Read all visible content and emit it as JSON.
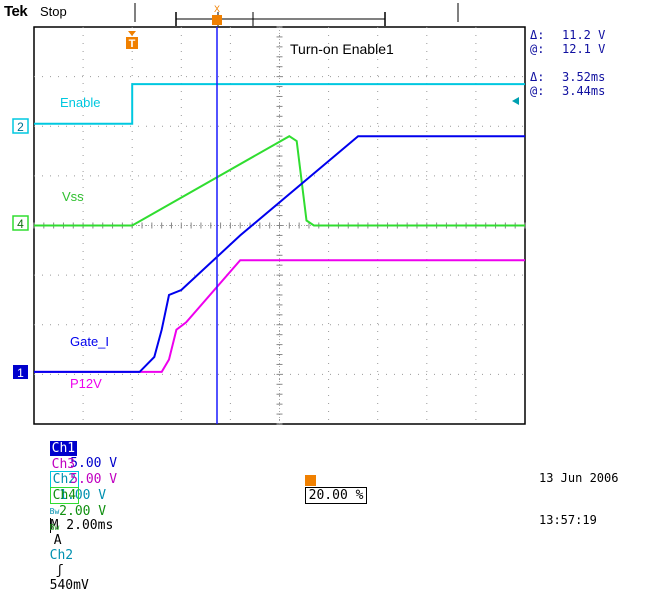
{
  "header": {
    "brand": "Tek",
    "state": "Stop"
  },
  "screen_title": "Turn-on Enable1",
  "trigger_marker": "T",
  "cursor_marker": "X",
  "measurements": [
    {
      "symbol": "Δ:",
      "value": "11.2 V"
    },
    {
      "symbol": "@:",
      "value": "12.1 V"
    },
    {
      "symbol": "Δ:",
      "value": "3.52ms"
    },
    {
      "symbol": "@:",
      "value": "3.44ms"
    }
  ],
  "channels": {
    "enable": {
      "label": "Enable",
      "marker": "2",
      "color": "#00c8e0"
    },
    "vss": {
      "label": "Vss",
      "marker": "4",
      "color": "#30dd30"
    },
    "gate": {
      "label": "Gate_I",
      "marker": "1",
      "color": "#0000ee"
    },
    "p12v": {
      "label": "P12V",
      "color": "#ee00ee"
    }
  },
  "status": {
    "ch1_name": "Ch1",
    "ch1_scale": "5.00 V",
    "ch2_name": "Ch2",
    "ch2_scale": "1.00 V",
    "bw": "Bw",
    "time": "M 2.00ms",
    "acq": "A",
    "trig_src": "Ch2",
    "trig_slope": "ʃ",
    "trig_level": "540mV",
    "ch3_name": "Ch3",
    "ch3_scale": "5.00 V",
    "ch4_name": "Ch4",
    "ch4_scale": "2.00 V",
    "bw2": "Bw",
    "trig_pos": "20.00 %",
    "date": "13 Jun 2006",
    "time_of_day": "13:57:19"
  },
  "chart_data": {
    "type": "line",
    "title": "Turn-on Enable1",
    "xlabel": "",
    "ylabel": "",
    "x_divisions": 10,
    "y_divisions": 8,
    "grid": true,
    "series": [
      {
        "name": "Enable",
        "values": [
          [
            0,
            6.05
          ],
          [
            2.0,
            6.05
          ],
          [
            2.0,
            6.85
          ],
          [
            10,
            6.85
          ]
        ]
      },
      {
        "name": "Vss",
        "values": [
          [
            0,
            4.0
          ],
          [
            2.0,
            4.0
          ],
          [
            5.2,
            5.8
          ],
          [
            5.35,
            5.7
          ],
          [
            5.55,
            4.1
          ],
          [
            5.7,
            4.0
          ],
          [
            10,
            4.0
          ]
        ]
      },
      {
        "name": "Gate_I",
        "values": [
          [
            0,
            1.05
          ],
          [
            2.15,
            1.05
          ],
          [
            2.45,
            1.35
          ],
          [
            2.6,
            1.9
          ],
          [
            2.75,
            2.6
          ],
          [
            3.0,
            2.7
          ],
          [
            4.2,
            3.8
          ],
          [
            6.6,
            5.8
          ],
          [
            10,
            5.8
          ]
        ]
      },
      {
        "name": "P12V",
        "values": [
          [
            0,
            1.05
          ],
          [
            2.6,
            1.05
          ],
          [
            2.75,
            1.3
          ],
          [
            2.9,
            1.9
          ],
          [
            3.1,
            2.05
          ],
          [
            4.2,
            3.3
          ],
          [
            10,
            3.3
          ]
        ]
      }
    ]
  }
}
